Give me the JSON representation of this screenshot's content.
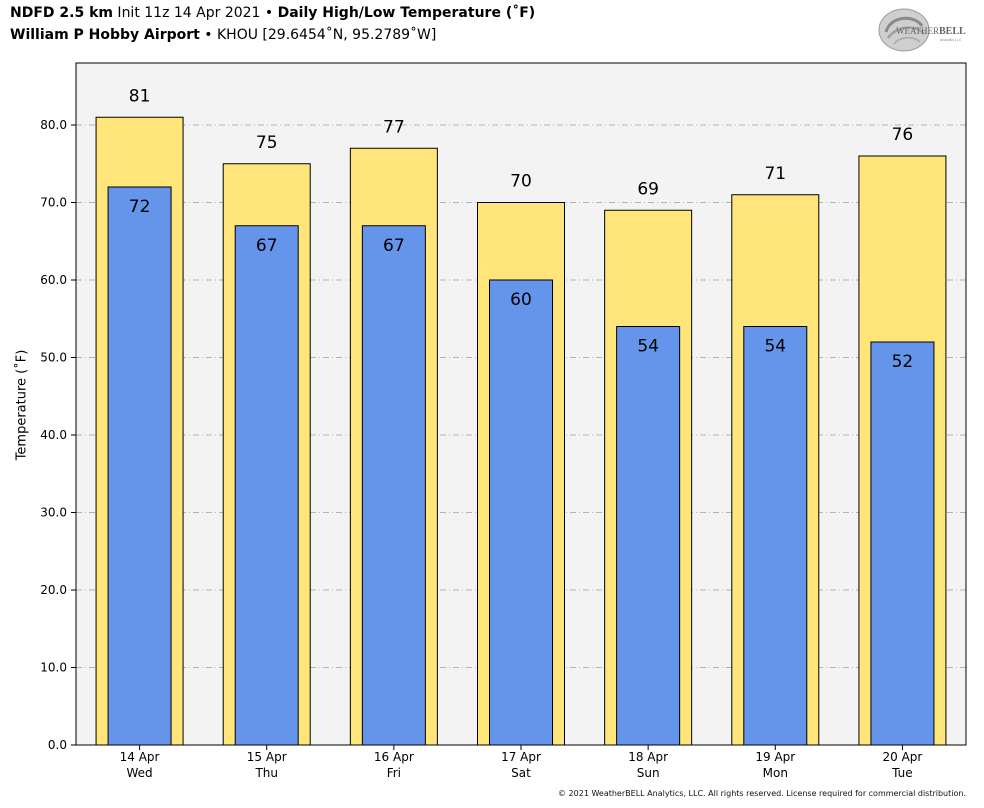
{
  "header": {
    "line1_bold_a": "NDFD 2.5 km",
    "line1_plain_a": " Init 11z 14 Apr 2021 • ",
    "line1_bold_b": "Daily High/Low Temperature (˚F)",
    "line2_bold": "William P Hobby Airport",
    "line2_plain": " • KHOU [29.6454˚N, 95.2789˚W]"
  },
  "logo": {
    "text_a": "WEATHER",
    "text_b": "BELL",
    "subtext": "Analytics LLC",
    "icon": "weatherbell-swirl-logo"
  },
  "copyright": "© 2021 WeatherBELL Analytics, LLC. All rights reserved. License required for commercial distribution.",
  "colors": {
    "high_bar": "#FFE57A",
    "low_bar": "#6495EB",
    "plot_background": "#F4F3F4",
    "grid": "#B4B4B4"
  },
  "chart_data": {
    "type": "bar",
    "ylabel": "Temperature (˚F)",
    "ylim": [
      0,
      88
    ],
    "yticks": [
      "0.0",
      "10.0",
      "20.0",
      "30.0",
      "40.0",
      "50.0",
      "60.0",
      "70.0",
      "80.0"
    ],
    "grid": true,
    "categories": [
      "14 Apr",
      "15 Apr",
      "16 Apr",
      "17 Apr",
      "18 Apr",
      "19 Apr",
      "20 Apr"
    ],
    "weekdays": [
      "Wed",
      "Thu",
      "Fri",
      "Sat",
      "Sun",
      "Mon",
      "Tue"
    ],
    "series": [
      {
        "values": [
          81,
          75,
          77,
          70,
          69,
          71,
          76
        ]
      },
      {
        "values": [
          72,
          67,
          67,
          60,
          54,
          54,
          52
        ]
      }
    ]
  }
}
